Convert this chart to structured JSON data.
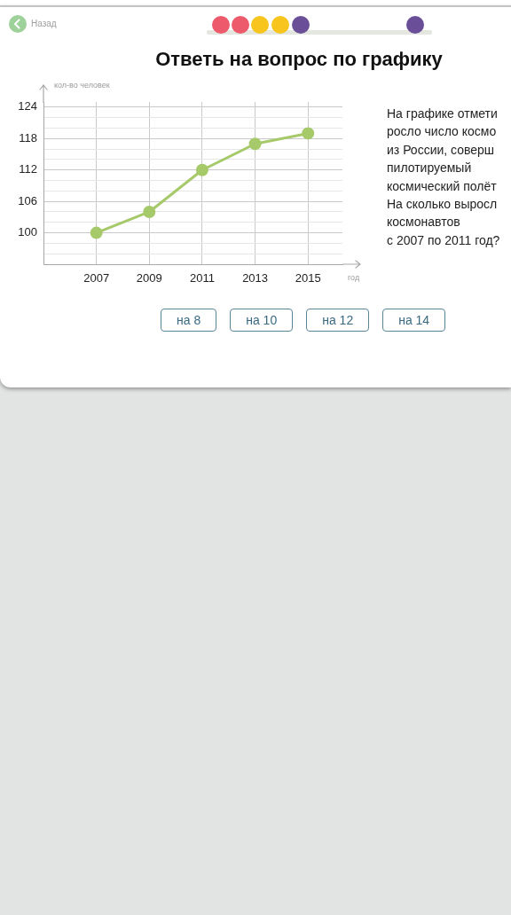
{
  "chart_data": {
    "type": "line",
    "title": "Ответь на вопрос по графику",
    "xlabel": "год",
    "ylabel": "кол-во человек",
    "annotations": [
      "Назад",
      "На графике отмети\nросло число космо\nиз России, соверш\nпилотируемый\nкосмический полёт\nНа сколько выросл\nкосмонавтов\nс 2007 по 2011 год?",
      "на 8",
      "на 10",
      "на 12",
      "на 14"
    ],
    "x": [
      2007,
      2009,
      2011,
      2013,
      2015
    ],
    "series": [
      {
        "color": "#a6c96a",
        "values": [
          100,
          104,
          112,
          117,
          119
        ]
      }
    ],
    "xlim": [
      2005,
      2016.3
    ],
    "xticks": [
      2007,
      2009,
      2011,
      2013,
      2015
    ],
    "ylim": [
      94,
      125
    ],
    "yticks": [
      {
        "value": 96,
        "label": null
      },
      {
        "value": 98,
        "label": null
      },
      100,
      {
        "value": 102,
        "label": null
      },
      {
        "value": 104,
        "label": null
      },
      106,
      {
        "value": 108,
        "label": null
      },
      {
        "value": 110,
        "label": null
      },
      112,
      {
        "value": 114,
        "label": null
      },
      {
        "value": 116,
        "label": null
      },
      118,
      {
        "value": 120,
        "label": null
      },
      {
        "value": 122,
        "label": null
      },
      124
    ],
    "grid": true,
    "marker": "circle",
    "line_style": "solid"
  }
}
